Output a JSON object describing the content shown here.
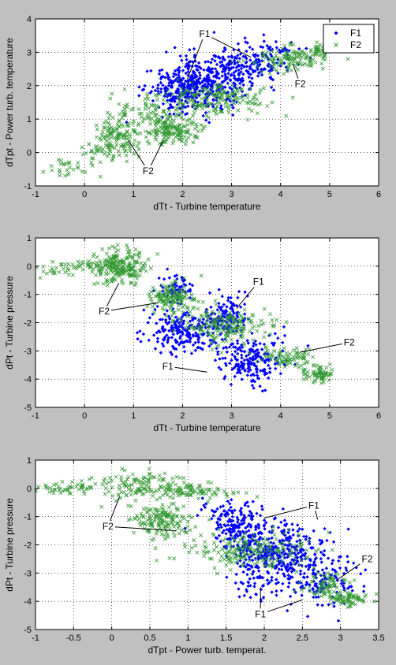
{
  "colors": {
    "figure_bg": "#c0c0c0",
    "axes_bg": "#ffffff",
    "f1": "#0000ff",
    "f2": "#339933",
    "axis": "#000000",
    "grid": "#000000"
  },
  "chart_data": [
    {
      "type": "scatter",
      "xlabel": "dTt - Turbine temperature",
      "ylabel": "dTpt - Power turb. temperature",
      "xlim": [
        -1,
        6
      ],
      "ylim": [
        -1,
        4
      ],
      "xticks": [
        -1,
        0,
        1,
        2,
        3,
        4,
        5,
        6
      ],
      "yticks": [
        -1,
        0,
        1,
        2,
        3,
        4
      ],
      "grid": true,
      "legend": {
        "position": "top-right",
        "entries": [
          "F1",
          "F2"
        ]
      },
      "series": [
        {
          "name": "F1",
          "marker": "dot",
          "clusters": [
            {
              "cx": 2.0,
              "cy": 1.85,
              "sx": 0.35,
              "sy": 0.35,
              "n": 260
            },
            {
              "cx": 2.6,
              "cy": 2.2,
              "sx": 0.45,
              "sy": 0.4,
              "n": 240
            },
            {
              "cx": 3.3,
              "cy": 2.6,
              "sx": 0.4,
              "sy": 0.3,
              "n": 120
            },
            {
              "cx": 3.9,
              "cy": 2.9,
              "sx": 0.3,
              "sy": 0.2,
              "n": 50
            }
          ]
        },
        {
          "name": "F2",
          "marker": "x",
          "clusters": [
            {
              "cx": 0.7,
              "cy": 0.5,
              "sx": 0.25,
              "sy": 0.35,
              "n": 140
            },
            {
              "cx": 1.3,
              "cy": 1.2,
              "sx": 0.3,
              "sy": 0.25,
              "n": 80
            },
            {
              "cx": 1.8,
              "cy": 0.65,
              "sx": 0.25,
              "sy": 0.2,
              "n": 150
            },
            {
              "cx": 2.7,
              "cy": 1.6,
              "sx": 0.5,
              "sy": 0.25,
              "n": 180
            },
            {
              "cx": 4.2,
              "cy": 2.8,
              "sx": 0.4,
              "sy": 0.2,
              "n": 120
            },
            {
              "cx": 4.85,
              "cy": 3.1,
              "sx": 0.1,
              "sy": 0.1,
              "n": 40
            },
            {
              "cx": -0.4,
              "cy": -0.45,
              "sx": 0.25,
              "sy": 0.15,
              "n": 25
            },
            {
              "cx": 0.2,
              "cy": 0.0,
              "sx": 0.15,
              "sy": 0.15,
              "n": 20
            }
          ]
        }
      ],
      "annotations": [
        {
          "text": "F1",
          "x": 2.45,
          "y": 3.55,
          "targets": [
            [
              2.1,
              2.2
            ],
            [
              3.4,
              2.85
            ]
          ]
        },
        {
          "text": "F2",
          "x": 4.4,
          "y": 2.05,
          "targets": [
            [
              4.25,
              2.65
            ]
          ]
        },
        {
          "text": "F2",
          "x": 1.3,
          "y": -0.55,
          "targets": [
            [
              0.9,
              0.35
            ],
            [
              1.6,
              0.35
            ]
          ]
        }
      ]
    },
    {
      "type": "scatter",
      "xlabel": "dTt - Turbine temperature",
      "ylabel": "dPt - Turbine pressure",
      "xlim": [
        -1,
        6
      ],
      "ylim": [
        -5,
        1
      ],
      "xticks": [
        -1,
        0,
        1,
        2,
        3,
        4,
        5,
        6
      ],
      "yticks": [
        -5,
        -4,
        -3,
        -2,
        -1,
        0,
        1
      ],
      "grid": true,
      "series": [
        {
          "name": "F1",
          "marker": "dot",
          "clusters": [
            {
              "cx": 1.9,
              "cy": -0.8,
              "sx": 0.2,
              "sy": 0.3,
              "n": 60
            },
            {
              "cx": 2.0,
              "cy": -2.3,
              "sx": 0.35,
              "sy": 0.35,
              "n": 220
            },
            {
              "cx": 2.9,
              "cy": -1.8,
              "sx": 0.2,
              "sy": 0.4,
              "n": 120
            },
            {
              "cx": 3.4,
              "cy": -3.3,
              "sx": 0.35,
              "sy": 0.4,
              "n": 200
            }
          ]
        },
        {
          "name": "F2",
          "marker": "x",
          "clusters": [
            {
              "cx": 0.75,
              "cy": 0.0,
              "sx": 0.25,
              "sy": 0.3,
              "n": 200
            },
            {
              "cx": -0.5,
              "cy": -0.15,
              "sx": 0.3,
              "sy": 0.12,
              "n": 30
            },
            {
              "cx": 0.3,
              "cy": 0.05,
              "sx": 0.3,
              "sy": 0.1,
              "n": 40
            },
            {
              "cx": 1.8,
              "cy": -1.1,
              "sx": 0.2,
              "sy": 0.3,
              "n": 140
            },
            {
              "cx": 2.9,
              "cy": -2.1,
              "sx": 0.45,
              "sy": 0.35,
              "n": 180
            },
            {
              "cx": 4.2,
              "cy": -3.2,
              "sx": 0.3,
              "sy": 0.2,
              "n": 80
            },
            {
              "cx": 4.75,
              "cy": -3.8,
              "sx": 0.15,
              "sy": 0.15,
              "n": 70
            }
          ]
        }
      ],
      "annotations": [
        {
          "text": "F2",
          "x": 0.4,
          "y": -1.6,
          "targets": [
            [
              0.7,
              -0.6
            ],
            [
              1.5,
              -1.3
            ]
          ]
        },
        {
          "text": "F1",
          "x": 3.55,
          "y": -0.55,
          "targets": [
            [
              3.1,
              -1.5
            ]
          ]
        },
        {
          "text": "F2",
          "x": 5.4,
          "y": -2.7,
          "targets": [
            [
              4.4,
              -3.05
            ]
          ]
        },
        {
          "text": "F1",
          "x": 1.7,
          "y": -3.55,
          "targets": [
            [
              2.5,
              -3.75
            ]
          ]
        }
      ]
    },
    {
      "type": "scatter",
      "xlabel": "dTpt - Power turb. temperat.",
      "ylabel": "dPt - Turbine pressure",
      "xlim": [
        -1,
        3.5
      ],
      "ylim": [
        -5,
        1
      ],
      "xticks": [
        -1,
        -0.5,
        0,
        0.5,
        1,
        1.5,
        2,
        2.5,
        3,
        3.5
      ],
      "yticks": [
        -5,
        -4,
        -3,
        -2,
        -1,
        0,
        1
      ],
      "grid": true,
      "series": [
        {
          "name": "F1",
          "marker": "dot",
          "clusters": [
            {
              "cx": 1.6,
              "cy": -1.1,
              "sx": 0.2,
              "sy": 0.35,
              "n": 120
            },
            {
              "cx": 1.9,
              "cy": -2.0,
              "sx": 0.25,
              "sy": 0.45,
              "n": 220
            },
            {
              "cx": 2.4,
              "cy": -2.4,
              "sx": 0.3,
              "sy": 0.5,
              "n": 200
            },
            {
              "cx": 2.75,
              "cy": -3.4,
              "sx": 0.25,
              "sy": 0.4,
              "n": 100
            },
            {
              "cx": 1.9,
              "cy": -3.3,
              "sx": 0.15,
              "sy": 0.3,
              "n": 50
            }
          ]
        },
        {
          "name": "F2",
          "marker": "x",
          "clusters": [
            {
              "cx": -0.6,
              "cy": 0.0,
              "sx": 0.25,
              "sy": 0.1,
              "n": 50
            },
            {
              "cx": 0.35,
              "cy": 0.1,
              "sx": 0.25,
              "sy": 0.25,
              "n": 120
            },
            {
              "cx": 1.05,
              "cy": -0.1,
              "sx": 0.25,
              "sy": 0.15,
              "n": 90
            },
            {
              "cx": 0.65,
              "cy": -1.2,
              "sx": 0.2,
              "sy": 0.3,
              "n": 150
            },
            {
              "cx": 1.8,
              "cy": -2.2,
              "sx": 0.45,
              "sy": 0.3,
              "n": 200
            },
            {
              "cx": 2.8,
              "cy": -3.4,
              "sx": 0.15,
              "sy": 0.2,
              "n": 70
            },
            {
              "cx": 3.1,
              "cy": -3.9,
              "sx": 0.15,
              "sy": 0.12,
              "n": 80
            }
          ]
        }
      ],
      "annotations": [
        {
          "text": "F1",
          "x": 2.65,
          "y": -0.6,
          "targets": [
            [
              2.0,
              -1.05
            ],
            [
              2.7,
              -1.1
            ]
          ]
        },
        {
          "text": "F2",
          "x": -0.05,
          "y": -1.35,
          "targets": [
            [
              0.1,
              -0.3
            ],
            [
              0.85,
              -1.5
            ]
          ]
        },
        {
          "text": "F2",
          "x": 3.35,
          "y": -2.5,
          "targets": [
            [
              2.95,
              -3.25
            ]
          ]
        },
        {
          "text": "F1",
          "x": 1.95,
          "y": -4.45,
          "targets": [
            [
              1.95,
              -3.5
            ],
            [
              2.5,
              -3.95
            ]
          ]
        }
      ]
    }
  ]
}
